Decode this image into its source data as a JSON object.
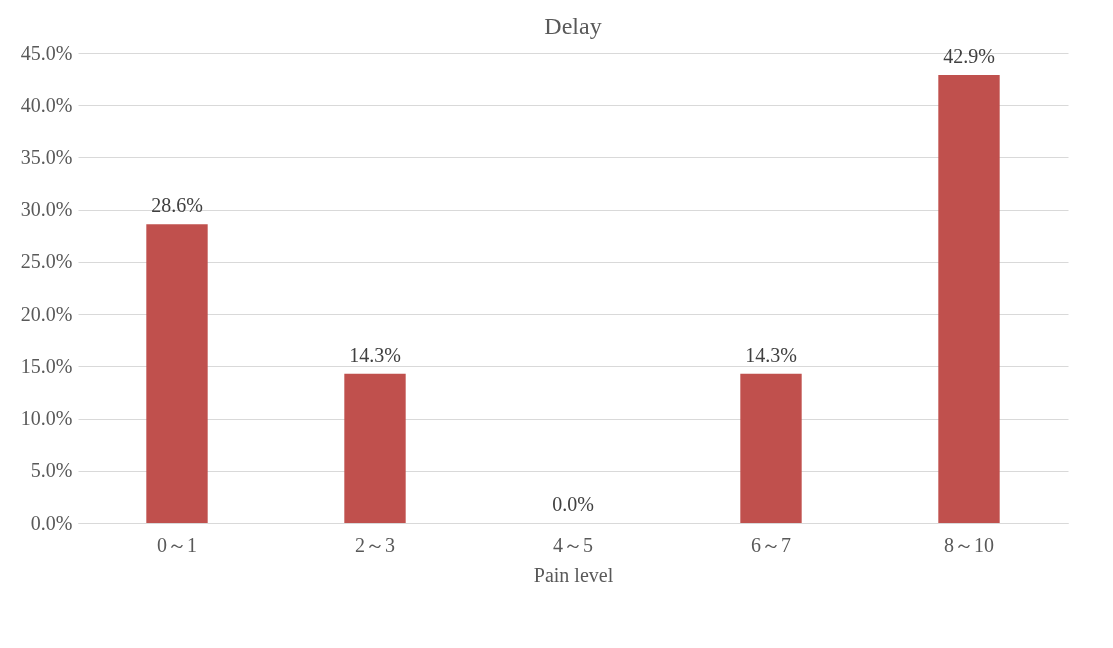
{
  "chart_data": {
    "type": "bar",
    "title": "Delay",
    "xlabel": "Pain level",
    "categories": [
      "0～1",
      "2～3",
      "4～5",
      "6～7",
      "8～10"
    ],
    "values": [
      28.6,
      14.3,
      0.0,
      14.3,
      42.9
    ],
    "value_labels": [
      "28.6%",
      "14.3%",
      "0.0%",
      "14.3%",
      "42.9%"
    ],
    "color": "#c0504d",
    "ylim": [
      0,
      45
    ],
    "yticks": [
      {
        "value": 0,
        "label": "0.0%"
      },
      {
        "value": 5,
        "label": "5.0%"
      },
      {
        "value": 10,
        "label": "10.0%"
      },
      {
        "value": 15,
        "label": "15.0%"
      },
      {
        "value": 20,
        "label": "20.0%"
      },
      {
        "value": 25,
        "label": "25.0%"
      },
      {
        "value": 30,
        "label": "30.0%"
      },
      {
        "value": 35,
        "label": "35.0%"
      },
      {
        "value": 40,
        "label": "40.0%"
      },
      {
        "value": 45,
        "label": "45.0%"
      }
    ],
    "grid": "y"
  }
}
